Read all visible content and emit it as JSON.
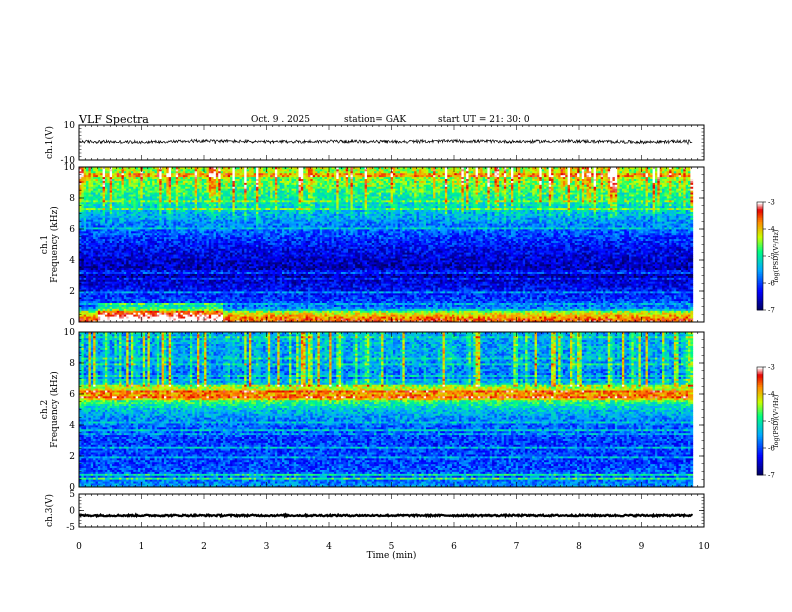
{
  "header": {
    "title": "VLF  Spectra",
    "date": "Oct. 9  . 2025",
    "station": "station= GAK",
    "start": "start  UT  =   21: 30: 0"
  },
  "colors": {
    "waveform": "#000000",
    "colormap": [
      "#000066",
      "#0000ff",
      "#00b0ff",
      "#00ff80",
      "#c8ff00",
      "#ff9000",
      "#e00000",
      "#ffffff"
    ]
  },
  "chart_data": [
    {
      "type": "line",
      "panel": "ch1-waveform",
      "ylabel": "ch.1(V)",
      "ylim": [
        -10,
        10
      ],
      "yticks": [
        "10",
        "-10"
      ],
      "x": [
        0,
        1,
        2,
        3,
        4,
        5,
        6,
        7,
        8,
        9,
        9.8
      ],
      "values": [
        0.5,
        0.2,
        1.0,
        0.3,
        0.6,
        0.4,
        0.8,
        0.5,
        0.7,
        0.2,
        0.6
      ]
    },
    {
      "type": "heatmap",
      "panel": "ch1-spectrogram",
      "ylabel": "ch.1\nFrequency  (kHz)",
      "ylim": [
        0,
        10
      ],
      "yticks": [
        "0",
        "2",
        "4",
        "6",
        "8",
        "10"
      ],
      "colorbar": {
        "label": "log(PSD)(V²/Hz)",
        "range": [
          -7,
          -3
        ],
        "ticks": [
          "-3",
          "-4",
          "-5",
          "-6",
          "-7"
        ]
      },
      "mean_log_psd_by_freq": {
        "f_khz": [
          0,
          0.5,
          1,
          2,
          3,
          4,
          5,
          6,
          7,
          8,
          9,
          10
        ],
        "log_psd": [
          -3.8,
          -4.5,
          -5.8,
          -6.2,
          -6.6,
          -6.5,
          -6.2,
          -5.8,
          -5.4,
          -5.0,
          -4.6,
          -4.4
        ]
      }
    },
    {
      "type": "heatmap",
      "panel": "ch2-spectrogram",
      "ylabel": "ch.2\nFrequency  (kHz)",
      "ylim": [
        0,
        10
      ],
      "yticks": [
        "0",
        "2",
        "4",
        "6",
        "8",
        "10"
      ],
      "colorbar": {
        "label": "log(PSD)(V²/Hz)",
        "range": [
          -7,
          -3
        ],
        "ticks": [
          "-3",
          "-4",
          "-5",
          "-6",
          "-7"
        ]
      },
      "mean_log_psd_by_freq": {
        "f_khz": [
          0,
          0.5,
          1,
          2,
          3,
          4,
          5,
          6,
          7,
          8,
          9,
          10
        ],
        "log_psd": [
          -5.5,
          -5.8,
          -5.9,
          -6.0,
          -6.0,
          -5.8,
          -5.3,
          -4.3,
          -5.8,
          -5.6,
          -5.5,
          -5.5
        ]
      }
    },
    {
      "type": "line",
      "panel": "ch3-waveform",
      "ylabel": "ch.3(V)",
      "ylim": [
        -5,
        5
      ],
      "yticks": [
        "5",
        "0",
        "-5"
      ],
      "x": [
        0,
        9.8
      ],
      "values": [
        -1.5,
        -1.5
      ]
    }
  ],
  "xaxis": {
    "label": "Time  (min)",
    "xlim": [
      0,
      10
    ],
    "ticks": [
      "0",
      "1",
      "2",
      "3",
      "4",
      "5",
      "6",
      "7",
      "8",
      "9",
      "10"
    ]
  }
}
